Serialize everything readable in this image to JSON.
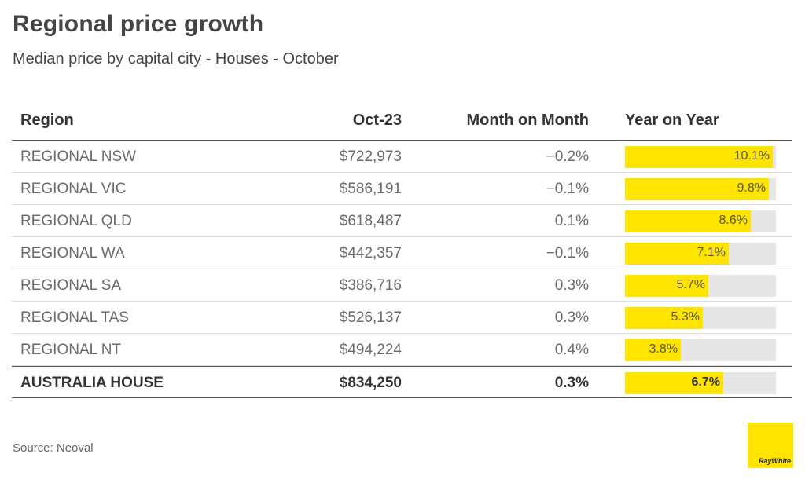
{
  "title": "Regional price growth",
  "subtitle": "Median price by capital city - Houses - October",
  "source": "Source: Neoval",
  "logo_text": "RayWhite",
  "colors": {
    "bar": "#ffe400",
    "track": "#e6e6e6",
    "logo": "#ffe400"
  },
  "chart_data": {
    "type": "table",
    "columns": [
      "Region",
      "Oct-23",
      "Month on Month",
      "Year on Year"
    ],
    "yoy_scale_max": 10.3,
    "rows": [
      {
        "region": "REGIONAL NSW",
        "price": "$722,973",
        "mom": "−0.2%",
        "yoy": 10.1,
        "yoy_label": "10.1%"
      },
      {
        "region": "REGIONAL VIC",
        "price": "$586,191",
        "mom": "−0.1%",
        "yoy": 9.8,
        "yoy_label": "9.8%"
      },
      {
        "region": "REGIONAL QLD",
        "price": "$618,487",
        "mom": "0.1%",
        "yoy": 8.6,
        "yoy_label": "8.6%"
      },
      {
        "region": "REGIONAL WA",
        "price": "$442,357",
        "mom": "−0.1%",
        "yoy": 7.1,
        "yoy_label": "7.1%"
      },
      {
        "region": "REGIONAL SA",
        "price": "$386,716",
        "mom": "0.3%",
        "yoy": 5.7,
        "yoy_label": "5.7%"
      },
      {
        "region": "REGIONAL TAS",
        "price": "$526,137",
        "mom": "0.3%",
        "yoy": 5.3,
        "yoy_label": "5.3%"
      },
      {
        "region": "REGIONAL NT",
        "price": "$494,224",
        "mom": "0.4%",
        "yoy": 3.8,
        "yoy_label": "3.8%"
      }
    ],
    "total": {
      "region": "AUSTRALIA HOUSE",
      "price": "$834,250",
      "mom": "0.3%",
      "yoy": 6.7,
      "yoy_label": "6.7%"
    }
  }
}
